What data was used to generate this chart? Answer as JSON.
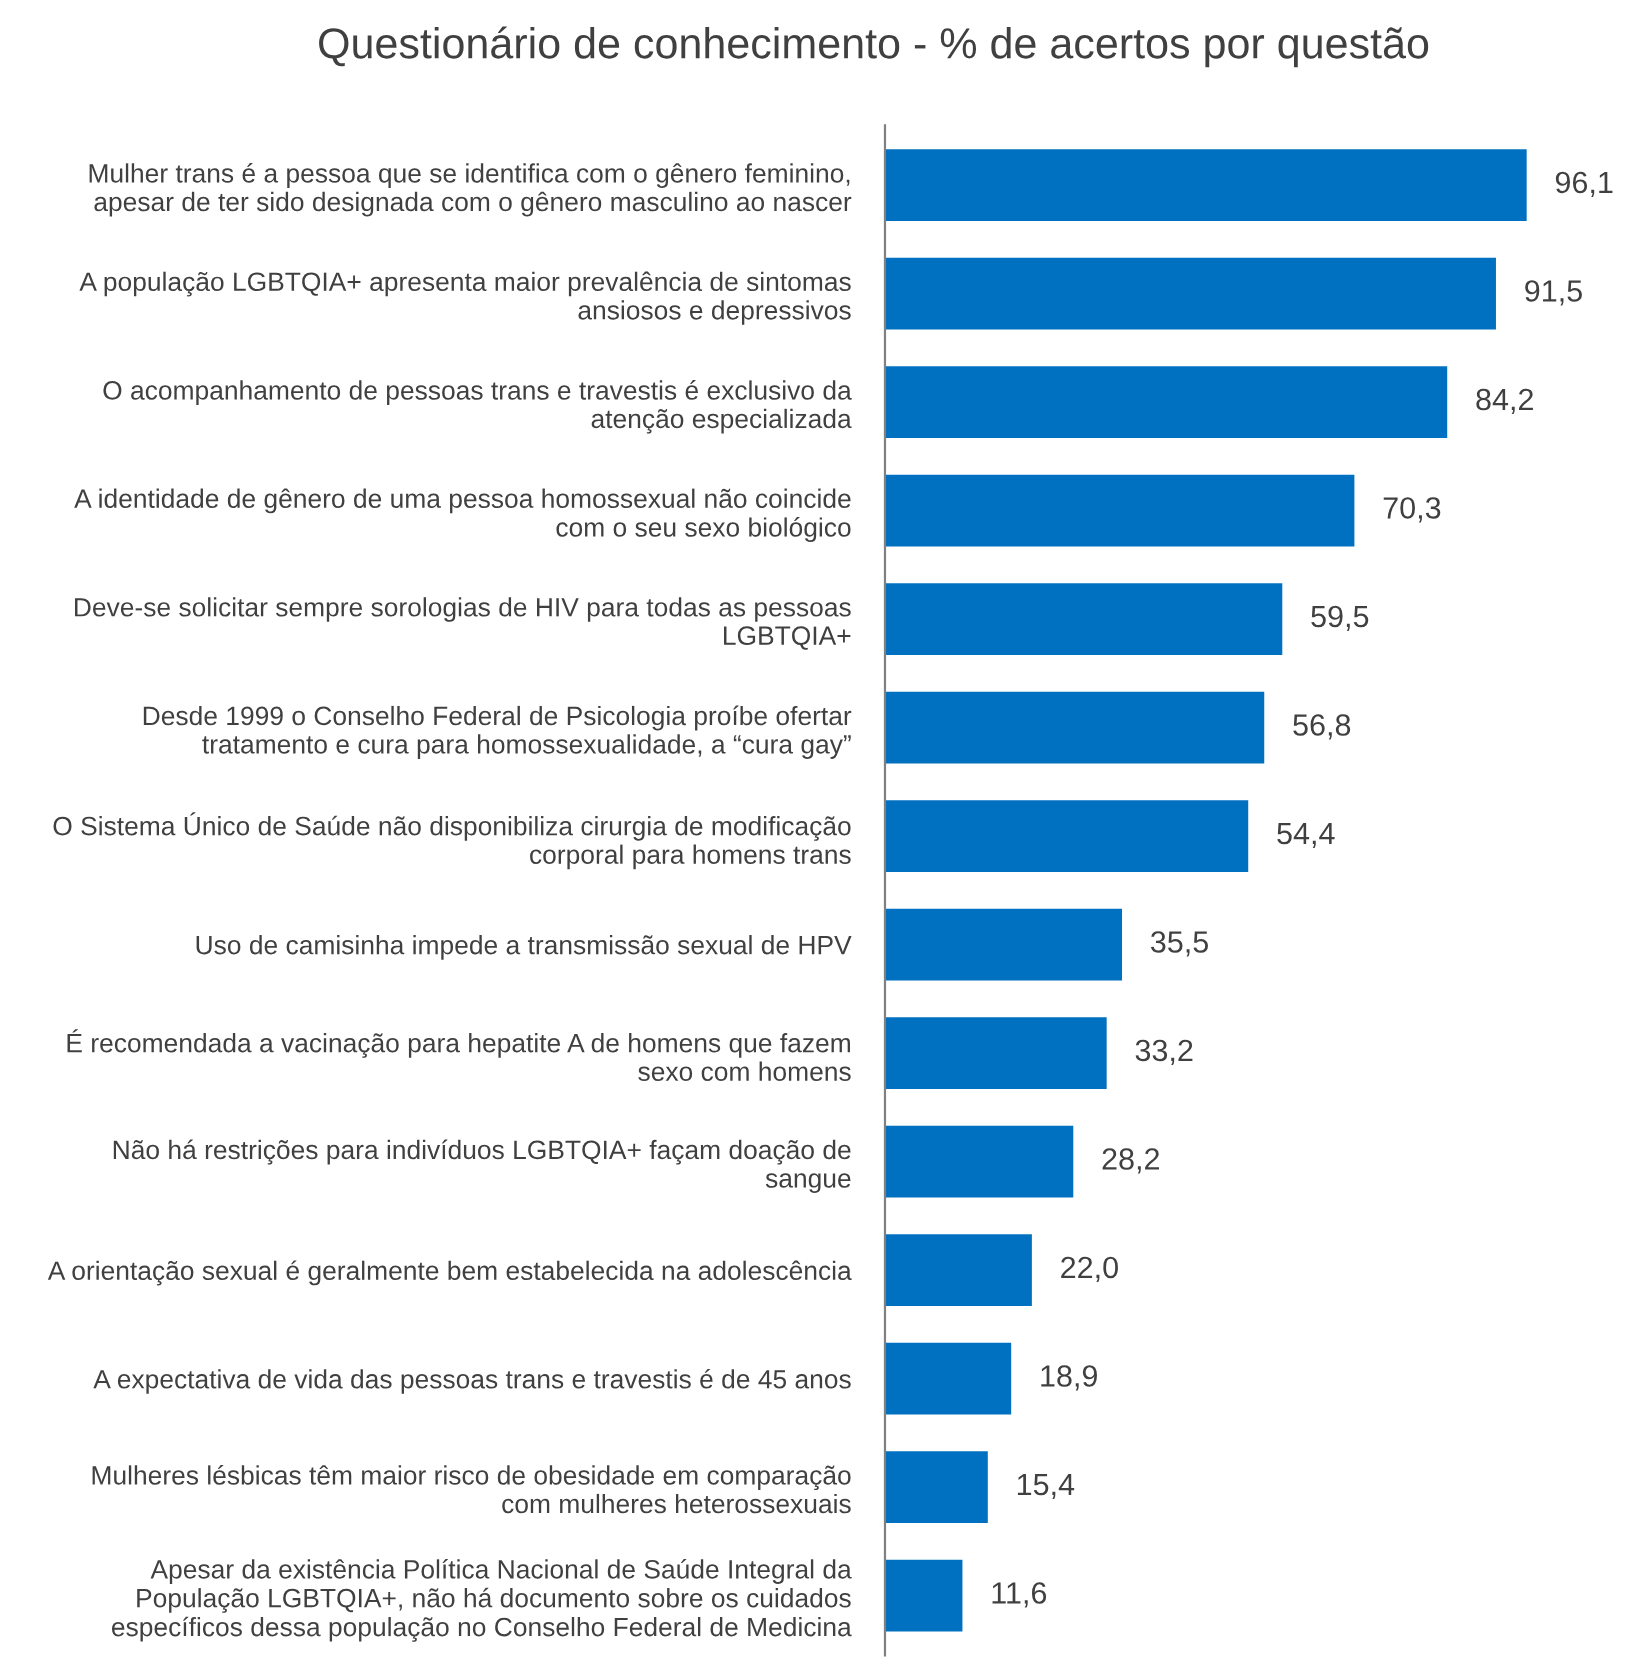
{
  "chart_data": {
    "type": "bar",
    "orientation": "horizontal",
    "title": "Questionário de conhecimento - % de acertos por questão",
    "categories": [
      "Mulher trans é a pessoa que se identifica com o gênero feminino,\napesar de ter sido designada com o gênero masculino ao nascer",
      "A população LGBTQIA+ apresenta maior prevalência de sintomas\nansiosos e depressivos",
      "O acompanhamento de pessoas trans e travestis é exclusivo da\natenção especializada",
      "A identidade de gênero de uma pessoa homossexual não coincide\ncom o seu sexo biológico",
      "Deve-se solicitar sempre sorologias de HIV para todas as pessoas\nLGBTQIA+",
      "Desde 1999 o Conselho Federal de Psicologia proíbe ofertar\ntratamento e cura para homossexualidade, a “cura gay”",
      "O Sistema Único de Saúde não disponibiliza cirurgia de modificação\ncorporal para homens trans",
      "Uso de camisinha impede a transmissão sexual de HPV",
      "É recomendada a vacinação para hepatite A de homens que fazem\nsexo com homens",
      "Não há restrições para indivíduos LGBTQIA+ façam doação de\nsangue",
      "A orientação sexual é geralmente bem estabelecida na adolescência",
      "A expectativa de vida das pessoas trans e travestis é de 45 anos",
      "Mulheres lésbicas têm maior risco de obesidade em comparação\ncom mulheres heterossexuais",
      "Apesar da existência Política Nacional de Saúde Integral da\nPopulação LGBTQIA+, não há documento sobre os cuidados\nespecíficos dessa população no Conselho Federal de Medicina"
    ],
    "values": [
      96.1,
      91.5,
      84.2,
      70.3,
      59.5,
      56.8,
      54.4,
      35.5,
      33.2,
      28.2,
      22.0,
      18.9,
      15.4,
      11.6
    ],
    "value_labels": [
      "96,1",
      "91,5",
      "84,2",
      "70,3",
      "59,5",
      "56,8",
      "54,4",
      "35,5",
      "33,2",
      "28,2",
      "22,0",
      "18,9",
      "15,4",
      "11,6"
    ],
    "color": "#0070c0",
    "grid": false,
    "legend": false
  }
}
